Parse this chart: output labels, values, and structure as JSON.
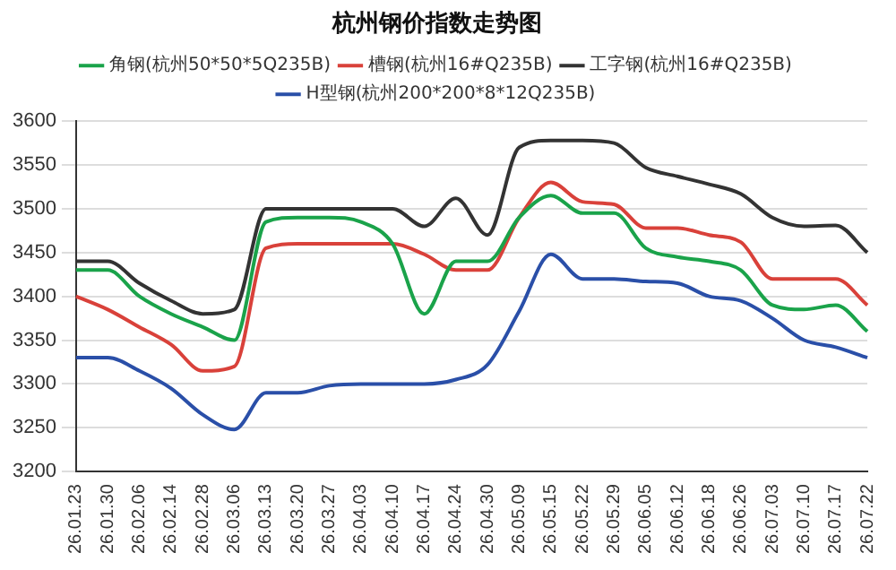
{
  "chart_data": {
    "type": "line",
    "title": "杭州钢价指数走势图",
    "categories": [
      "26.01.23",
      "26.01.30",
      "26.02.06",
      "26.02.14",
      "26.02.28",
      "26.03.06",
      "26.03.13",
      "26.03.20",
      "26.03.27",
      "26.04.03",
      "26.04.10",
      "26.04.17",
      "26.04.24",
      "26.04.30",
      "26.05.09",
      "26.05.15",
      "26.05.22",
      "26.05.29",
      "26.06.05",
      "26.06.12",
      "26.06.18",
      "26.06.26",
      "26.07.03",
      "26.07.10",
      "26.07.17",
      "26.07.22"
    ],
    "series": [
      {
        "name": "角钢(杭州50*50*5Q235B)",
        "color": "#1aa34a",
        "values": [
          3430,
          3430,
          3400,
          3380,
          3365,
          3350,
          3485,
          3490,
          3490,
          3485,
          3460,
          3380,
          3440,
          3440,
          3490,
          3515,
          3495,
          3495,
          3455,
          3445,
          3440,
          3430,
          3390,
          3385,
          3390,
          3360
        ]
      },
      {
        "name": "槽钢(杭州16#Q235B)",
        "color": "#d9413a",
        "values": [
          3400,
          3385,
          3365,
          3345,
          3315,
          3320,
          3455,
          3460,
          3460,
          3460,
          3460,
          3448,
          3430,
          3430,
          3490,
          3530,
          3508,
          3505,
          3478,
          3478,
          3470,
          3462,
          3420,
          3420,
          3420,
          3390
        ]
      },
      {
        "name": "工字钢(杭州16#Q235B)",
        "color": "#333333",
        "values": [
          3440,
          3440,
          3415,
          3395,
          3380,
          3385,
          3500,
          3500,
          3500,
          3500,
          3500,
          3480,
          3512,
          3470,
          3570,
          3578,
          3578,
          3575,
          3547,
          3537,
          3528,
          3517,
          3490,
          3480,
          3481,
          3450
        ]
      },
      {
        "name": "H型钢(杭州200*200*8*12Q235B)",
        "color": "#2a4fa8",
        "values": [
          3330,
          3330,
          3315,
          3295,
          3265,
          3248,
          3290,
          3290,
          3298,
          3300,
          3300,
          3300,
          3305,
          3322,
          3383,
          3448,
          3420,
          3420,
          3417,
          3415,
          3400,
          3395,
          3375,
          3350,
          3342,
          3330
        ]
      }
    ],
    "ylim": [
      3200,
      3600
    ],
    "yticks": [
      3200,
      3250,
      3300,
      3350,
      3400,
      3450,
      3500,
      3550,
      3600
    ],
    "grid": "y",
    "legend": "top",
    "marker": "none",
    "line_style": "solid"
  }
}
